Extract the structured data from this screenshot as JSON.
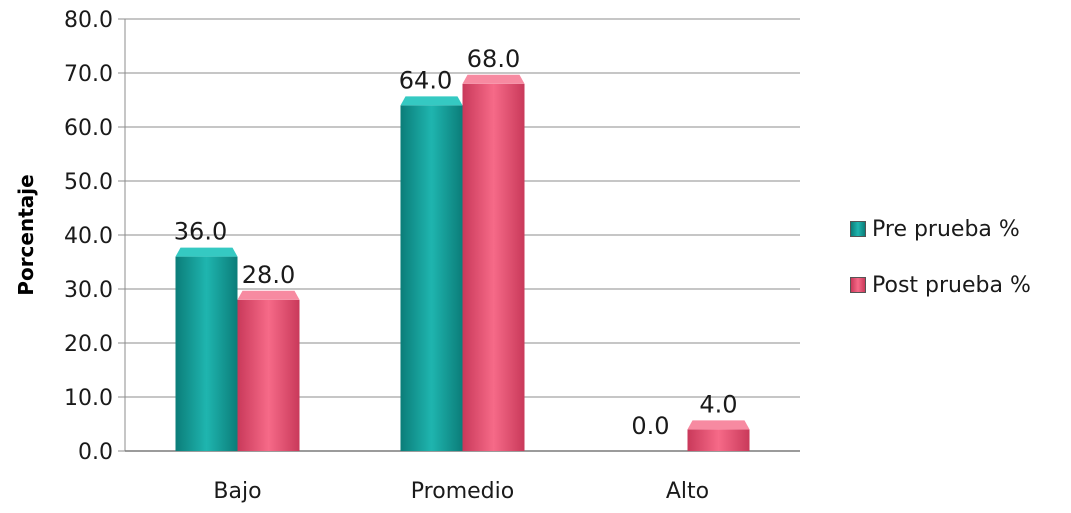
{
  "chart_data": {
    "type": "bar",
    "categories": [
      "Bajo",
      "Promedio",
      "Alto"
    ],
    "series": [
      {
        "name": "Pre prueba %",
        "values": [
          36.0,
          64.0,
          0.0
        ],
        "color": "#13a09b"
      },
      {
        "name": "Post prueba %",
        "values": [
          28.0,
          68.0,
          4.0
        ],
        "color": "#ec5574"
      }
    ],
    "ylabel": "Porcentaje",
    "ylim": [
      0,
      80
    ],
    "yticks": [
      "0.0",
      "10.0",
      "20.0",
      "30.0",
      "40.0",
      "50.0",
      "60.0",
      "70.0",
      "80.0"
    ],
    "data_labels": [
      [
        "36.0",
        "64.0",
        "0.0"
      ],
      [
        "28.0",
        "68.0",
        "4.0"
      ]
    ],
    "grid": true,
    "legend_position": "right"
  }
}
